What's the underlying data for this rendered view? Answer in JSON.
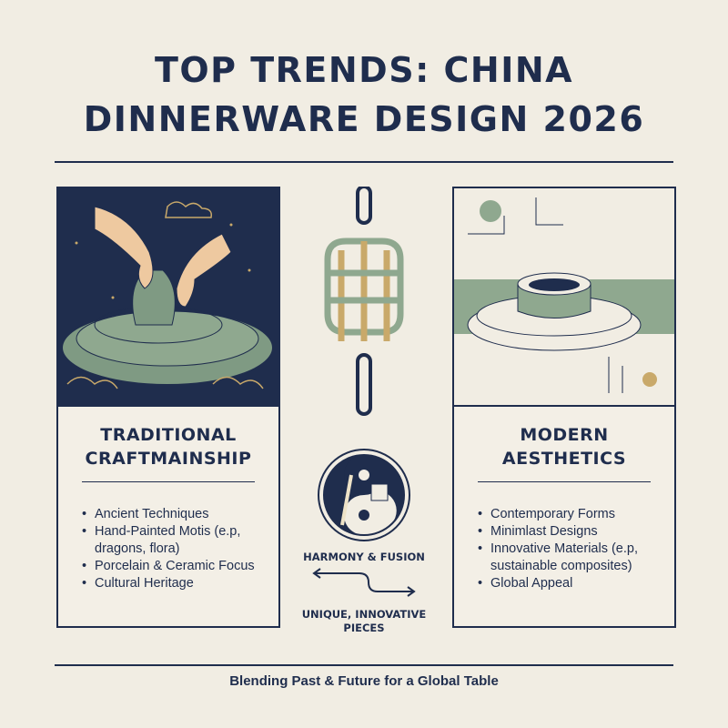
{
  "title": {
    "line1": "TOP TRENDS: CHINA",
    "line2": "DINNERWARE DESIGN 2026"
  },
  "colors": {
    "navy": "#1f2d4d",
    "sage": "#8fa88f",
    "gold": "#c9a96a",
    "background": "#f1ede3"
  },
  "left_card": {
    "heading_line1": "TRADITIONAL",
    "heading_line2": "CRAFTMAINSHIP",
    "image": "hands-shaping-pottery-on-wheel",
    "items": [
      "Ancient Techniques",
      "Hand-Painted Motis (e.p, dragons, flora)",
      "Porcelain & Ceramic Focus",
      "Cultural Heritage"
    ]
  },
  "right_card": {
    "heading_line1": "MODERN",
    "heading_line2": "AESTHETICS",
    "image": "modern-minimalist-bowl-and-plate",
    "items": [
      "Contemporary Forms",
      "Minimlast Designs",
      "Innovative Materials (e.p, sustainable composites)",
      "Global Appeal"
    ]
  },
  "center": {
    "knot_icon": "chinese-knot-icon",
    "symbol_icon": "yin-yang-brush-chip-icon",
    "harmony_label": "HARMONY & FUSION",
    "arrow_icon": "bidirectional-arrow-icon",
    "unique_label": "UNIQUE, INNOVATIVE PIECES"
  },
  "footer": {
    "text": "Blending Past & Future for a Global Table"
  }
}
